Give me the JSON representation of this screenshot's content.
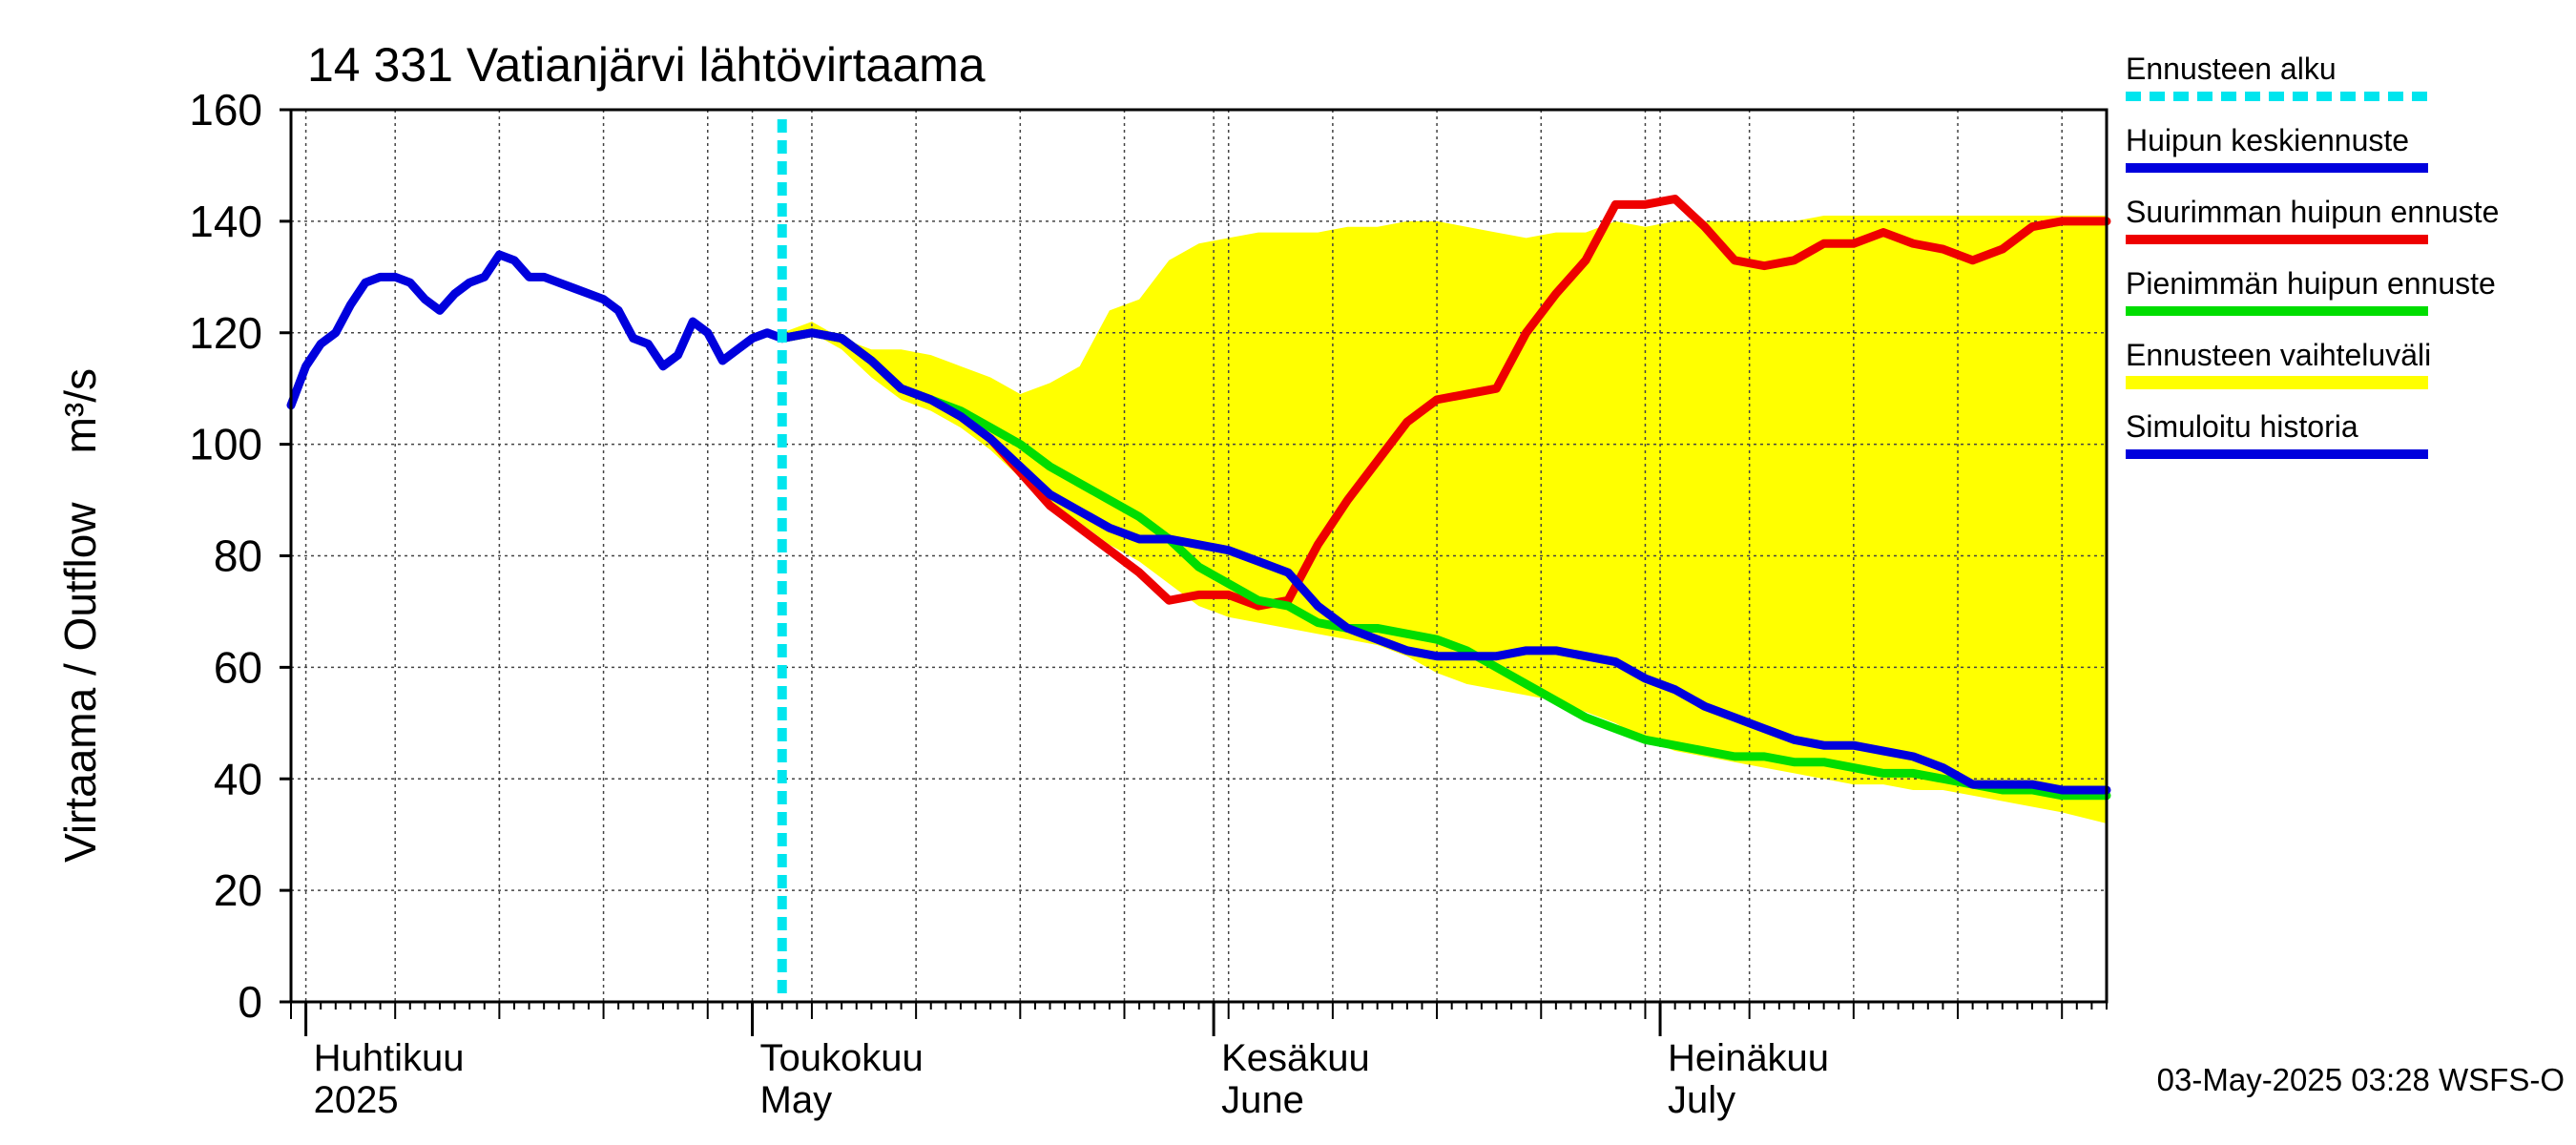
{
  "chart_data": {
    "type": "line",
    "title": "14 331 Vatianjärvi lähtövirtaama",
    "ylabel": "Virtaama / Outflow    m³/s",
    "ylim": [
      0,
      160
    ],
    "yticks": [
      0,
      20,
      40,
      60,
      80,
      100,
      120,
      140,
      160
    ],
    "xlim": [
      "2025-03-31",
      "2025-07-31"
    ],
    "grid": true,
    "legend_position": "right",
    "month_labels": [
      {
        "date": "2025-04-01",
        "fi": "Huhtikuu",
        "en": "2025"
      },
      {
        "date": "2025-05-01",
        "fi": "Toukokuu",
        "en": "May"
      },
      {
        "date": "2025-06-01",
        "fi": "Kesäkuu",
        "en": "June"
      },
      {
        "date": "2025-07-01",
        "fi": "Heinäkuu",
        "en": "July"
      }
    ],
    "forecast_start": "2025-05-03",
    "footer": "03-May-2025 03:28 WSFS-O",
    "legend": [
      {
        "key": "forecast_start",
        "label": "Ennusteen alku",
        "color": "#00e5ee",
        "style": "dotted"
      },
      {
        "key": "mean_peak",
        "label": "Huipun keskiennuste",
        "color": "#0000dd",
        "style": "solid"
      },
      {
        "key": "max_peak",
        "label": "Suurimman huipun ennuste",
        "color": "#ee0000",
        "style": "solid"
      },
      {
        "key": "min_peak",
        "label": "Pienimmän huipun ennuste",
        "color": "#00dd00",
        "style": "solid"
      },
      {
        "key": "range",
        "label": "Ennusteen vaihteluväli",
        "color": "#ffff00",
        "style": "band"
      },
      {
        "key": "history",
        "label": "Simuloitu historia",
        "color": "#0000dd",
        "style": "solid"
      }
    ],
    "series": [
      {
        "key": "range",
        "type": "band",
        "x": [
          "2025-05-03",
          "2025-05-05",
          "2025-05-07",
          "2025-05-09",
          "2025-05-11",
          "2025-05-13",
          "2025-05-15",
          "2025-05-17",
          "2025-05-19",
          "2025-05-21",
          "2025-05-23",
          "2025-05-25",
          "2025-05-27",
          "2025-05-29",
          "2025-05-31",
          "2025-06-02",
          "2025-06-04",
          "2025-06-06",
          "2025-06-08",
          "2025-06-10",
          "2025-06-12",
          "2025-06-14",
          "2025-06-16",
          "2025-06-18",
          "2025-06-20",
          "2025-06-22",
          "2025-06-24",
          "2025-06-26",
          "2025-06-28",
          "2025-06-30",
          "2025-07-02",
          "2025-07-04",
          "2025-07-06",
          "2025-07-08",
          "2025-07-10",
          "2025-07-12",
          "2025-07-14",
          "2025-07-16",
          "2025-07-18",
          "2025-07-20",
          "2025-07-22",
          "2025-07-24",
          "2025-07-26",
          "2025-07-28",
          "2025-07-31"
        ],
        "low": [
          119,
          120,
          117,
          112,
          108,
          106,
          103,
          99,
          94,
          89,
          86,
          82,
          79,
          75,
          71,
          69,
          68,
          67,
          66,
          65,
          64,
          62,
          59,
          57,
          56,
          55,
          54,
          52,
          50,
          47,
          45,
          44,
          43,
          42,
          41,
          40,
          39,
          39,
          38,
          38,
          37,
          36,
          35,
          34,
          32
        ],
        "high": [
          120,
          122,
          119,
          117,
          117,
          116,
          114,
          112,
          109,
          111,
          114,
          124,
          126,
          133,
          136,
          137,
          138,
          138,
          138,
          139,
          139,
          140,
          140,
          139,
          138,
          137,
          138,
          138,
          140,
          139,
          140,
          140,
          140,
          140,
          140,
          141,
          141,
          141,
          141,
          141,
          141,
          141,
          141,
          141,
          141
        ]
      },
      {
        "key": "max_peak",
        "x": [
          "2025-05-03",
          "2025-05-05",
          "2025-05-07",
          "2025-05-09",
          "2025-05-11",
          "2025-05-13",
          "2025-05-15",
          "2025-05-17",
          "2025-05-19",
          "2025-05-21",
          "2025-05-23",
          "2025-05-25",
          "2025-05-27",
          "2025-05-29",
          "2025-05-31",
          "2025-06-02",
          "2025-06-04",
          "2025-06-06",
          "2025-06-08",
          "2025-06-10",
          "2025-06-12",
          "2025-06-14",
          "2025-06-16",
          "2025-06-18",
          "2025-06-20",
          "2025-06-22",
          "2025-06-24",
          "2025-06-26",
          "2025-06-28",
          "2025-06-30",
          "2025-07-02",
          "2025-07-04",
          "2025-07-06",
          "2025-07-08",
          "2025-07-10",
          "2025-07-12",
          "2025-07-14",
          "2025-07-16",
          "2025-07-18",
          "2025-07-20",
          "2025-07-22",
          "2025-07-24",
          "2025-07-26",
          "2025-07-28",
          "2025-07-31"
        ],
        "y": [
          119,
          120,
          119,
          115,
          110,
          108,
          105,
          101,
          95,
          89,
          85,
          81,
          77,
          72,
          73,
          73,
          71,
          72,
          82,
          90,
          97,
          104,
          108,
          109,
          110,
          120,
          127,
          133,
          143,
          143,
          144,
          139,
          133,
          132,
          133,
          136,
          136,
          138,
          136,
          135,
          133,
          135,
          139,
          140,
          140
        ]
      },
      {
        "key": "min_peak",
        "x": [
          "2025-05-03",
          "2025-05-05",
          "2025-05-07",
          "2025-05-09",
          "2025-05-11",
          "2025-05-13",
          "2025-05-15",
          "2025-05-17",
          "2025-05-19",
          "2025-05-21",
          "2025-05-23",
          "2025-05-25",
          "2025-05-27",
          "2025-05-29",
          "2025-05-31",
          "2025-06-02",
          "2025-06-04",
          "2025-06-06",
          "2025-06-08",
          "2025-06-10",
          "2025-06-12",
          "2025-06-14",
          "2025-06-16",
          "2025-06-18",
          "2025-06-20",
          "2025-06-22",
          "2025-06-24",
          "2025-06-26",
          "2025-06-28",
          "2025-06-30",
          "2025-07-02",
          "2025-07-04",
          "2025-07-06",
          "2025-07-08",
          "2025-07-10",
          "2025-07-12",
          "2025-07-14",
          "2025-07-16",
          "2025-07-18",
          "2025-07-20",
          "2025-07-22",
          "2025-07-24",
          "2025-07-26",
          "2025-07-28",
          "2025-07-31"
        ],
        "y": [
          119,
          120,
          119,
          115,
          110,
          108,
          106,
          103,
          100,
          96,
          93,
          90,
          87,
          83,
          78,
          75,
          72,
          71,
          68,
          67,
          67,
          66,
          65,
          63,
          60,
          57,
          54,
          51,
          49,
          47,
          46,
          45,
          44,
          44,
          43,
          43,
          42,
          41,
          41,
          40,
          39,
          38,
          38,
          37,
          37
        ]
      },
      {
        "key": "mean_peak",
        "x": [
          "2025-05-03",
          "2025-05-05",
          "2025-05-07",
          "2025-05-09",
          "2025-05-11",
          "2025-05-13",
          "2025-05-15",
          "2025-05-17",
          "2025-05-19",
          "2025-05-21",
          "2025-05-23",
          "2025-05-25",
          "2025-05-27",
          "2025-05-29",
          "2025-05-31",
          "2025-06-02",
          "2025-06-04",
          "2025-06-06",
          "2025-06-08",
          "2025-06-10",
          "2025-06-12",
          "2025-06-14",
          "2025-06-16",
          "2025-06-18",
          "2025-06-20",
          "2025-06-22",
          "2025-06-24",
          "2025-06-26",
          "2025-06-28",
          "2025-06-30",
          "2025-07-02",
          "2025-07-04",
          "2025-07-06",
          "2025-07-08",
          "2025-07-10",
          "2025-07-12",
          "2025-07-14",
          "2025-07-16",
          "2025-07-18",
          "2025-07-20",
          "2025-07-22",
          "2025-07-24",
          "2025-07-26",
          "2025-07-28",
          "2025-07-31"
        ],
        "y": [
          119,
          120,
          119,
          115,
          110,
          108,
          105,
          101,
          96,
          91,
          88,
          85,
          83,
          83,
          82,
          81,
          79,
          77,
          71,
          67,
          65,
          63,
          62,
          62,
          62,
          63,
          63,
          62,
          61,
          58,
          56,
          53,
          51,
          49,
          47,
          46,
          46,
          45,
          44,
          42,
          39,
          39,
          39,
          38,
          38
        ]
      },
      {
        "key": "history",
        "x": [
          "2025-03-31",
          "2025-04-01",
          "2025-04-02",
          "2025-04-03",
          "2025-04-04",
          "2025-04-05",
          "2025-04-06",
          "2025-04-07",
          "2025-04-08",
          "2025-04-09",
          "2025-04-10",
          "2025-04-11",
          "2025-04-12",
          "2025-04-13",
          "2025-04-14",
          "2025-04-15",
          "2025-04-16",
          "2025-04-17",
          "2025-04-18",
          "2025-04-19",
          "2025-04-20",
          "2025-04-21",
          "2025-04-22",
          "2025-04-23",
          "2025-04-24",
          "2025-04-25",
          "2025-04-26",
          "2025-04-27",
          "2025-04-28",
          "2025-04-29",
          "2025-04-30",
          "2025-05-01",
          "2025-05-02",
          "2025-05-03"
        ],
        "y": [
          107,
          114,
          118,
          120,
          125,
          129,
          130,
          130,
          129,
          126,
          124,
          127,
          129,
          130,
          134,
          133,
          130,
          130,
          129,
          128,
          127,
          126,
          124,
          119,
          118,
          114,
          116,
          122,
          120,
          115,
          117,
          119,
          120,
          119
        ]
      }
    ]
  }
}
